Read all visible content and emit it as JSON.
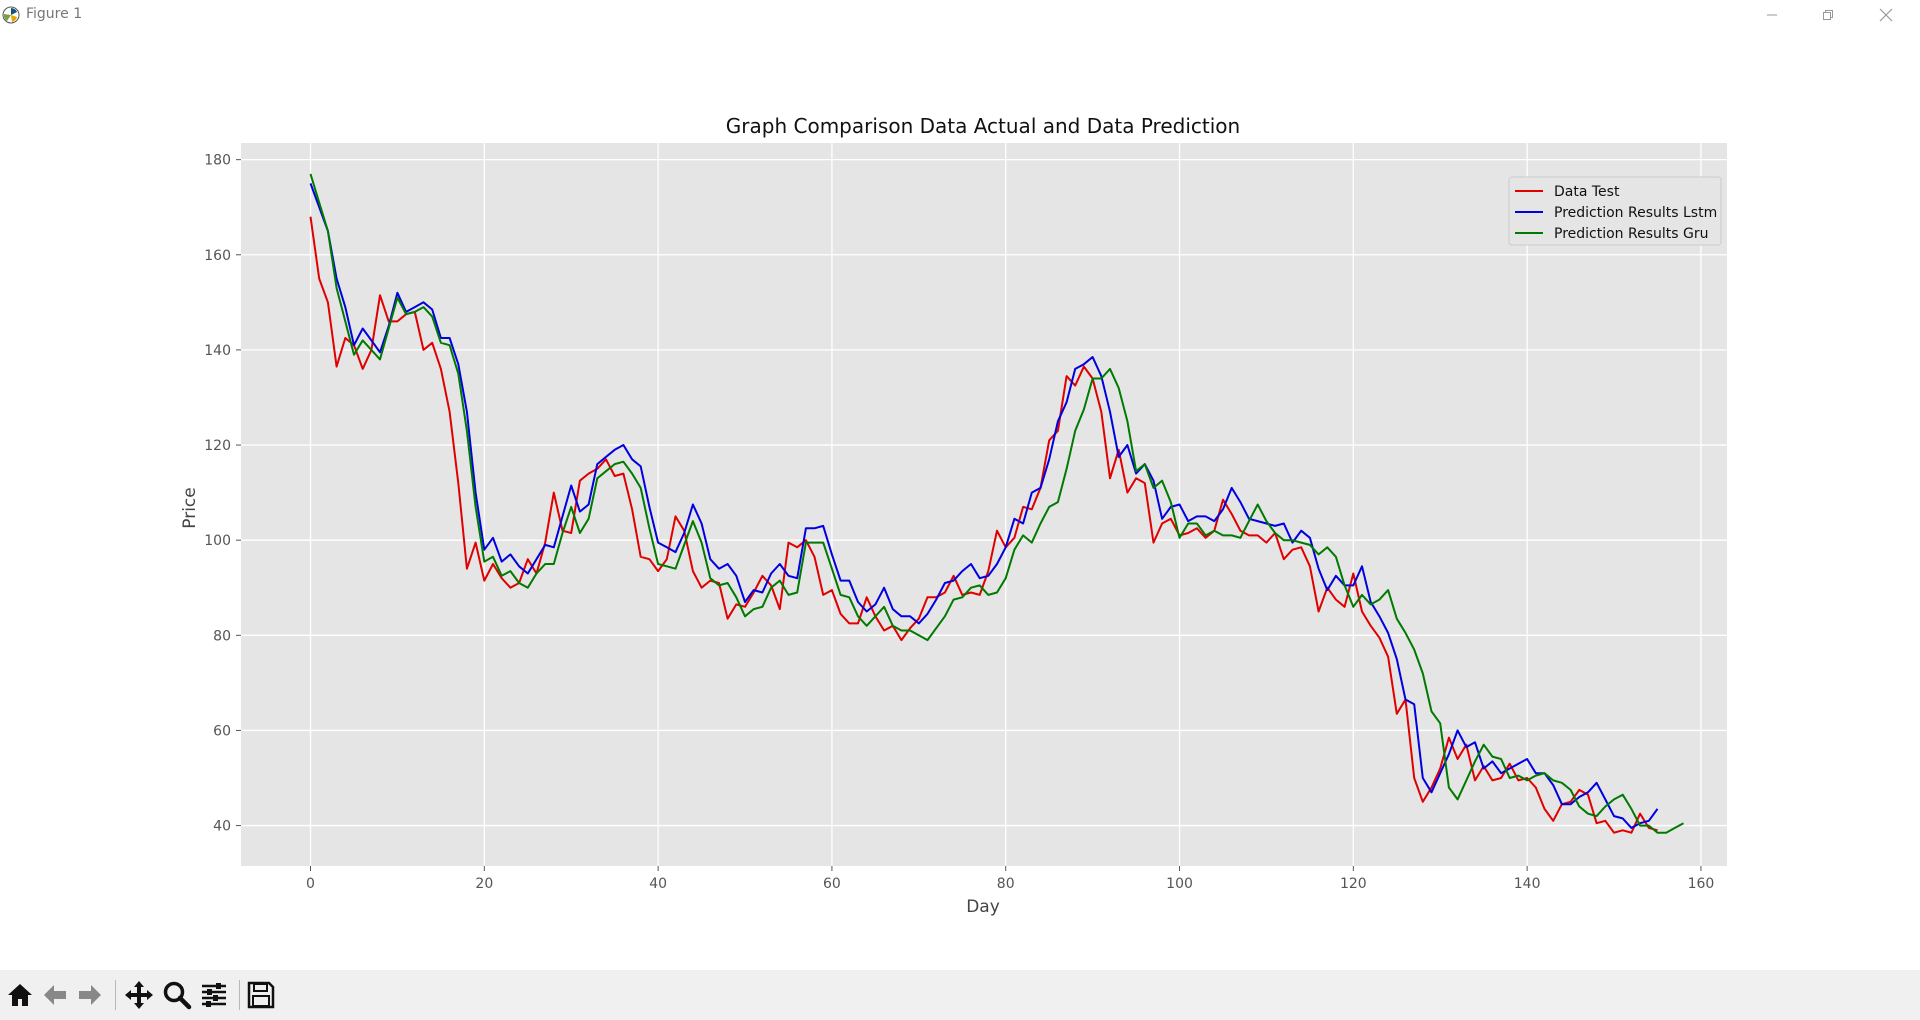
{
  "window": {
    "title": "Figure 1"
  },
  "colors": {
    "actual": "#e00000",
    "lstm": "#0000e0",
    "gru": "#007a00",
    "plot_bg": "#e5e5e5",
    "grid": "#ffffff"
  },
  "toolbar": {
    "buttons": [
      {
        "name": "home",
        "icon": "home-icon"
      },
      {
        "name": "back",
        "icon": "arrow-left-icon"
      },
      {
        "name": "forward",
        "icon": "arrow-right-icon"
      },
      {
        "name": "pan",
        "icon": "move-icon"
      },
      {
        "name": "zoom",
        "icon": "magnifier-icon"
      },
      {
        "name": "configure",
        "icon": "sliders-icon"
      },
      {
        "name": "save",
        "icon": "floppy-icon"
      }
    ]
  },
  "chart_data": {
    "type": "line",
    "title": "Graph Comparison Data Actual and Data Prediction",
    "xlabel": "Day",
    "ylabel": "Price",
    "xlim": [
      -8,
      163
    ],
    "ylim": [
      31.5,
      183.5
    ],
    "xticks": [
      0,
      20,
      40,
      60,
      80,
      100,
      120,
      140,
      160
    ],
    "yticks": [
      40,
      60,
      80,
      100,
      120,
      140,
      160,
      180
    ],
    "grid": true,
    "legend": "top-right",
    "x_start": 0,
    "series": [
      {
        "name": "Data Test",
        "color": "#e00000",
        "values": [
          168,
          155,
          150,
          136.5,
          142.5,
          141,
          136,
          140,
          151.5,
          146,
          146,
          147.5,
          148,
          140,
          141.5,
          136,
          127,
          112,
          94,
          99.5,
          91.5,
          95,
          92,
          90,
          91,
          96,
          93,
          99.5,
          110,
          102,
          101.5,
          112.5,
          114,
          115,
          117,
          113.5,
          114,
          106.5,
          96.5,
          96,
          93.5,
          96,
          105,
          102,
          93.5,
          90,
          91.5,
          91,
          83.5,
          86.5,
          86,
          89,
          92.5,
          90.5,
          85.5,
          99.5,
          98.5,
          100,
          96.5,
          88.5,
          89.5,
          84.5,
          82.5,
          82.5,
          88,
          84,
          81,
          82,
          79,
          81.5,
          83.5,
          88,
          88,
          89,
          92.5,
          88.5,
          89,
          88.5,
          93.5,
          102,
          98.5,
          100.5,
          107,
          106.5,
          111,
          121,
          123,
          134.5,
          132.5,
          136.5,
          134,
          127,
          113,
          119,
          110,
          113,
          112,
          99.5,
          103.5,
          104.5,
          101,
          101.5,
          102.5,
          100.5,
          102,
          108.5,
          105.5,
          102,
          101,
          101,
          99.5,
          101.5,
          96,
          98,
          98.5,
          94.5,
          85,
          90,
          87.5,
          86,
          93,
          85,
          82,
          79.5,
          75.5,
          63.5,
          66.5,
          50,
          45,
          48,
          52,
          58.5,
          54,
          57,
          49.5,
          52.5,
          49.5,
          50,
          53,
          49.5,
          50,
          48,
          43.5,
          41,
          44.5,
          45,
          47.5,
          46.5,
          40.5,
          41,
          38.5,
          39,
          38.5,
          42.5,
          39.5,
          39
        ]
      },
      {
        "name": "Prediction Results Lstm",
        "color": "#0000e0",
        "values": [
          175,
          170,
          165,
          155,
          149,
          141,
          144.5,
          142,
          139.5,
          145,
          152,
          148,
          149,
          150,
          148.5,
          142.5,
          142.5,
          137,
          127,
          110,
          98,
          100.5,
          95.5,
          97,
          94.5,
          93,
          96,
          99,
          98.5,
          105,
          111.5,
          106,
          107.5,
          116,
          117.5,
          119,
          120,
          117,
          115.5,
          107,
          99.5,
          98.5,
          97.5,
          101.5,
          107.5,
          103.5,
          96,
          94,
          95,
          92.5,
          87,
          89.5,
          89,
          93,
          95,
          92.5,
          92,
          102.5,
          102.5,
          103,
          97,
          91.5,
          91.5,
          87,
          85,
          86.5,
          90,
          85.5,
          84,
          84,
          82.5,
          84.5,
          87.5,
          91,
          91.5,
          93.5,
          95,
          92,
          92.5,
          95,
          98.5,
          104.5,
          103.5,
          110,
          111,
          117,
          125,
          129,
          136,
          137,
          138.5,
          134.5,
          127,
          117.5,
          120,
          114,
          116,
          112.5,
          104.5,
          107,
          107.5,
          104,
          105,
          105,
          104,
          106.5,
          111,
          108,
          104.5,
          104,
          103.5,
          103,
          103.5,
          99.5,
          102,
          100.5,
          94,
          89.5,
          92.5,
          90.5,
          90.5,
          94.5,
          87,
          84,
          80.5,
          75,
          66.5,
          65.5,
          50,
          47,
          51,
          55,
          60,
          56.5,
          57.5,
          52,
          53.5,
          51,
          52,
          53,
          54,
          51,
          51,
          48.5,
          44.5,
          44.5,
          46,
          47,
          49,
          45.5,
          42,
          41.5,
          39.5,
          40.5,
          41,
          43.5
        ]
      },
      {
        "name": "Prediction Results Gru",
        "color": "#007a00",
        "values": [
          177,
          171,
          165,
          153,
          146,
          139,
          142,
          140,
          138,
          144.5,
          151,
          147.5,
          148,
          149,
          147,
          141.5,
          141,
          135,
          123,
          107,
          95.5,
          96.5,
          92.5,
          93.5,
          91,
          90,
          93,
          95,
          95,
          101.5,
          107,
          101.5,
          104.5,
          113,
          114.5,
          116,
          116.5,
          114,
          111,
          102.5,
          95,
          94.5,
          94,
          99,
          104,
          99.5,
          92,
          90.5,
          91,
          88,
          84,
          85.5,
          86,
          90,
          91.5,
          88.5,
          89,
          99.5,
          99.5,
          99.5,
          94,
          88.5,
          88,
          84,
          82,
          84,
          86,
          82,
          81,
          81,
          80,
          79,
          81.5,
          84,
          87.5,
          88,
          90,
          90.5,
          88.5,
          89,
          92,
          98,
          101,
          99.5,
          103.5,
          107,
          108,
          115,
          123,
          127.5,
          134,
          134,
          136,
          132,
          125,
          114.5,
          116,
          111,
          112.5,
          108,
          100.5,
          103.5,
          103.5,
          101,
          102,
          101,
          101,
          100.5,
          104,
          107.5,
          104,
          101.5,
          100,
          100,
          99.5,
          99,
          97,
          98.5,
          96.5,
          90.5,
          86,
          88.5,
          86.5,
          87.5,
          89.5,
          83.5,
          80.5,
          77,
          72,
          64,
          61.5,
          48,
          45.5,
          49.5,
          53.5,
          57,
          54.5,
          54,
          50,
          50.5,
          49.5,
          50.5,
          51,
          49.5,
          49,
          47.5,
          44,
          42.5,
          42,
          44,
          45.5,
          46.5,
          43.5,
          40,
          40,
          38.5,
          38.5,
          39.5,
          40.5
        ]
      }
    ]
  }
}
